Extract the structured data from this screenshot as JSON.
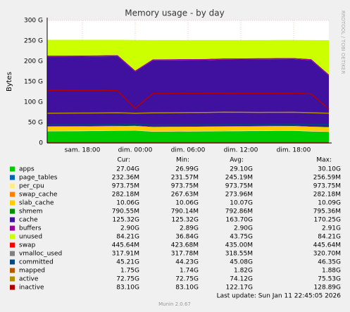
{
  "chart_data": {
    "type": "stacked-area",
    "title": "Memory usage - by day",
    "ylabel": "Bytes",
    "side_text": "RRDTOOL / TOBI OETIKER",
    "last_update": "Last update: Sun Jan 11 22:45:05 2026",
    "footer": "Munin 2.0.67",
    "grid": true,
    "categories": [
      null,
      null,
      "sam. 18:00",
      null,
      null,
      "dim. 00:00",
      null,
      null,
      "dim. 06:00",
      null,
      null,
      "dim. 12:00",
      null,
      null,
      "dim. 18:00",
      null,
      null
    ],
    "ylim": [
      0,
      300
    ],
    "yticks": [
      0,
      {
        "value": 50,
        "label": "50 G"
      },
      {
        "value": 100,
        "label": "100 G"
      },
      {
        "value": 150,
        "label": "150 G"
      },
      {
        "value": 200,
        "label": "200 G"
      },
      {
        "value": 250,
        "label": "250 G"
      },
      {
        "value": 300,
        "label": "300 G"
      }
    ],
    "stat_columns": [
      "Cur:",
      "Min:",
      "Avg:",
      "Max:"
    ],
    "series": [
      {
        "name": "apps",
        "color": "#00cc00",
        "kind": "area",
        "stats": [
          "27.04G",
          "26.99G",
          "29.10G",
          "30.10G"
        ],
        "values": [
          28.5,
          28.7,
          28.9,
          29.2,
          29.6,
          30.1,
          27.5,
          27.8,
          28.0,
          28.3,
          28.6,
          28.9,
          29.2,
          29.5,
          29.8,
          28.0,
          27.04
        ]
      },
      {
        "name": "page_tables",
        "color": "#0066b3",
        "kind": "area",
        "stats": [
          "232.36M",
          "231.57M",
          "245.19M",
          "256.59M"
        ],
        "values": [
          0.25,
          0.25,
          0.25,
          0.25,
          0.25,
          0.25,
          0.24,
          0.24,
          0.24,
          0.24,
          0.24,
          0.24,
          0.24,
          0.24,
          0.24,
          0.24,
          0.23
        ]
      },
      {
        "name": "per_cpu",
        "color": "#ffee88",
        "kind": "area",
        "stats": [
          "973.75M",
          "973.75M",
          "973.75M",
          "973.75M"
        ],
        "values": [
          0.97,
          0.97,
          0.97,
          0.97,
          0.97,
          0.97,
          0.97,
          0.97,
          0.97,
          0.97,
          0.97,
          0.97,
          0.97,
          0.97,
          0.97,
          0.97,
          0.97
        ]
      },
      {
        "name": "swap_cache",
        "color": "#ff8000",
        "kind": "area",
        "stats": [
          "282.18M",
          "267.63M",
          "273.96M",
          "282.18M"
        ],
        "values": [
          0.27,
          0.27,
          0.27,
          0.27,
          0.27,
          0.27,
          0.27,
          0.27,
          0.27,
          0.27,
          0.27,
          0.27,
          0.27,
          0.28,
          0.28,
          0.28,
          0.28
        ]
      },
      {
        "name": "slab_cache",
        "color": "#ffcc00",
        "kind": "area",
        "stats": [
          "10.06G",
          "10.06G",
          "10.07G",
          "10.09G"
        ],
        "values": [
          10.07,
          10.07,
          10.07,
          10.08,
          10.08,
          10.09,
          10.07,
          10.07,
          10.07,
          10.07,
          10.07,
          10.07,
          10.07,
          10.07,
          10.07,
          10.06,
          10.06
        ]
      },
      {
        "name": "shmem",
        "color": "#008f00",
        "kind": "area",
        "stats": [
          "790.55M",
          "790.14M",
          "792.86M",
          "795.36M"
        ],
        "values": [
          0.79,
          0.79,
          0.79,
          0.79,
          0.79,
          0.79,
          0.79,
          0.79,
          0.79,
          0.79,
          0.79,
          0.79,
          0.79,
          0.79,
          0.79,
          0.79,
          0.79
        ]
      },
      {
        "name": "cache",
        "color": "#40109f",
        "kind": "area",
        "stats": [
          "125.32G",
          "125.32G",
          "163.70G",
          "170.25G"
        ],
        "values": [
          170,
          170,
          170,
          170,
          170.25,
          132,
          162,
          162,
          162,
          162,
          163,
          163,
          163,
          163,
          163,
          162,
          125.32
        ]
      },
      {
        "name": "buffers",
        "color": "#990099",
        "kind": "area",
        "stats": [
          "2.90G",
          "2.89G",
          "2.90G",
          "2.91G"
        ],
        "values": [
          2.9,
          2.9,
          2.9,
          2.9,
          2.9,
          2.9,
          2.9,
          2.9,
          2.9,
          2.9,
          2.9,
          2.9,
          2.9,
          2.9,
          2.9,
          2.9,
          2.9
        ]
      },
      {
        "name": "unused",
        "color": "#ccff00",
        "kind": "area",
        "stats": [
          "84.21G",
          "36.84G",
          "43.75G",
          "84.21G"
        ],
        "values": [
          38.9,
          38.7,
          38.5,
          38.2,
          37.5,
          74.7,
          47.3,
          47.0,
          46.8,
          46.5,
          45.2,
          44.9,
          44.6,
          44.3,
          44.0,
          46.8,
          84.21
        ]
      },
      {
        "name": "swap",
        "color": "#ff0000",
        "kind": "line",
        "stats": [
          "445.64M",
          "423.68M",
          "435.00M",
          "445.64M"
        ],
        "values": [
          0.43,
          0.43,
          0.43,
          0.43,
          0.43,
          0.43,
          0.43,
          0.44,
          0.44,
          0.44,
          0.44,
          0.44,
          0.44,
          0.44,
          0.45,
          0.45,
          0.45
        ]
      },
      {
        "name": "vmalloc_used",
        "color": "#808080",
        "kind": "line",
        "stats": [
          "317.91M",
          "317.78M",
          "318.55M",
          "320.70M"
        ],
        "values": [
          0.32,
          0.32,
          0.32,
          0.32,
          0.32,
          0.32,
          0.32,
          0.32,
          0.32,
          0.32,
          0.32,
          0.32,
          0.32,
          0.32,
          0.32,
          0.32,
          0.32
        ]
      },
      {
        "name": "committed",
        "color": "#00487d",
        "kind": "line",
        "stats": [
          "45.21G",
          "44.23G",
          "45.08G",
          "46.35G"
        ],
        "values": [
          44.8,
          44.9,
          45.0,
          45.2,
          45.5,
          46.35,
          44.3,
          44.5,
          44.7,
          44.9,
          45.1,
          45.3,
          45.4,
          45.6,
          45.8,
          45.3,
          45.21
        ]
      },
      {
        "name": "mapped",
        "color": "#b35a00",
        "kind": "line",
        "stats": [
          "1.75G",
          "1.74G",
          "1.82G",
          "1.88G"
        ],
        "values": [
          1.8,
          1.8,
          1.8,
          1.8,
          1.85,
          1.88,
          1.8,
          1.8,
          1.8,
          1.8,
          1.85,
          1.85,
          1.85,
          1.85,
          1.85,
          1.8,
          1.75
        ]
      },
      {
        "name": "active",
        "color": "#b38f00",
        "kind": "line",
        "stats": [
          "72.75G",
          "72.75G",
          "74.12G",
          "75.53G"
        ],
        "values": [
          72.9,
          73.0,
          73.2,
          73.5,
          74.0,
          72.8,
          73.8,
          74.0,
          74.3,
          74.5,
          75.5,
          75.3,
          74.8,
          75.0,
          75.2,
          74.0,
          72.75
        ]
      },
      {
        "name": "inactive",
        "color": "#b30000",
        "kind": "line",
        "stats": [
          "83.10G",
          "83.10G",
          "122.17G",
          "128.89G"
        ],
        "values": [
          128.5,
          128.7,
          128.8,
          128.89,
          128.0,
          85.0,
          121.0,
          121.2,
          121.5,
          121.6,
          121.8,
          122.0,
          122.0,
          121.9,
          121.7,
          120.0,
          83.1
        ]
      }
    ]
  }
}
